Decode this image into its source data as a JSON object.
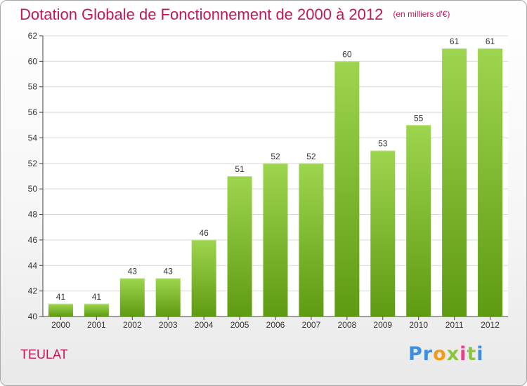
{
  "header": {
    "title": "Dotation Globale de Fonctionnement de 2000 à 2012",
    "subtitle": "(en milliers d'€)"
  },
  "footer": {
    "commune": "TEULAT",
    "brand": "Proxiti"
  },
  "colors": {
    "title": "#c2185b",
    "bar_top": "#9ed54f",
    "bar_bottom": "#5e9a12",
    "grid": "#d8d8d8",
    "axis": "#444444"
  },
  "chart_data": {
    "type": "bar",
    "categories": [
      "2000",
      "2001",
      "2002",
      "2003",
      "2004",
      "2005",
      "2006",
      "2007",
      "2008",
      "2009",
      "2010",
      "2011",
      "2012"
    ],
    "values": [
      41,
      41,
      43,
      43,
      46,
      51,
      52,
      52,
      60,
      53,
      55,
      61,
      61
    ],
    "title": "Dotation Globale de Fonctionnement de 2000 à 2012",
    "xlabel": "",
    "ylabel": "",
    "ylim": [
      40,
      62
    ],
    "yticks": [
      40,
      42,
      44,
      46,
      48,
      50,
      52,
      54,
      56,
      58,
      60,
      62
    ],
    "grid": true,
    "data_labels": true
  }
}
